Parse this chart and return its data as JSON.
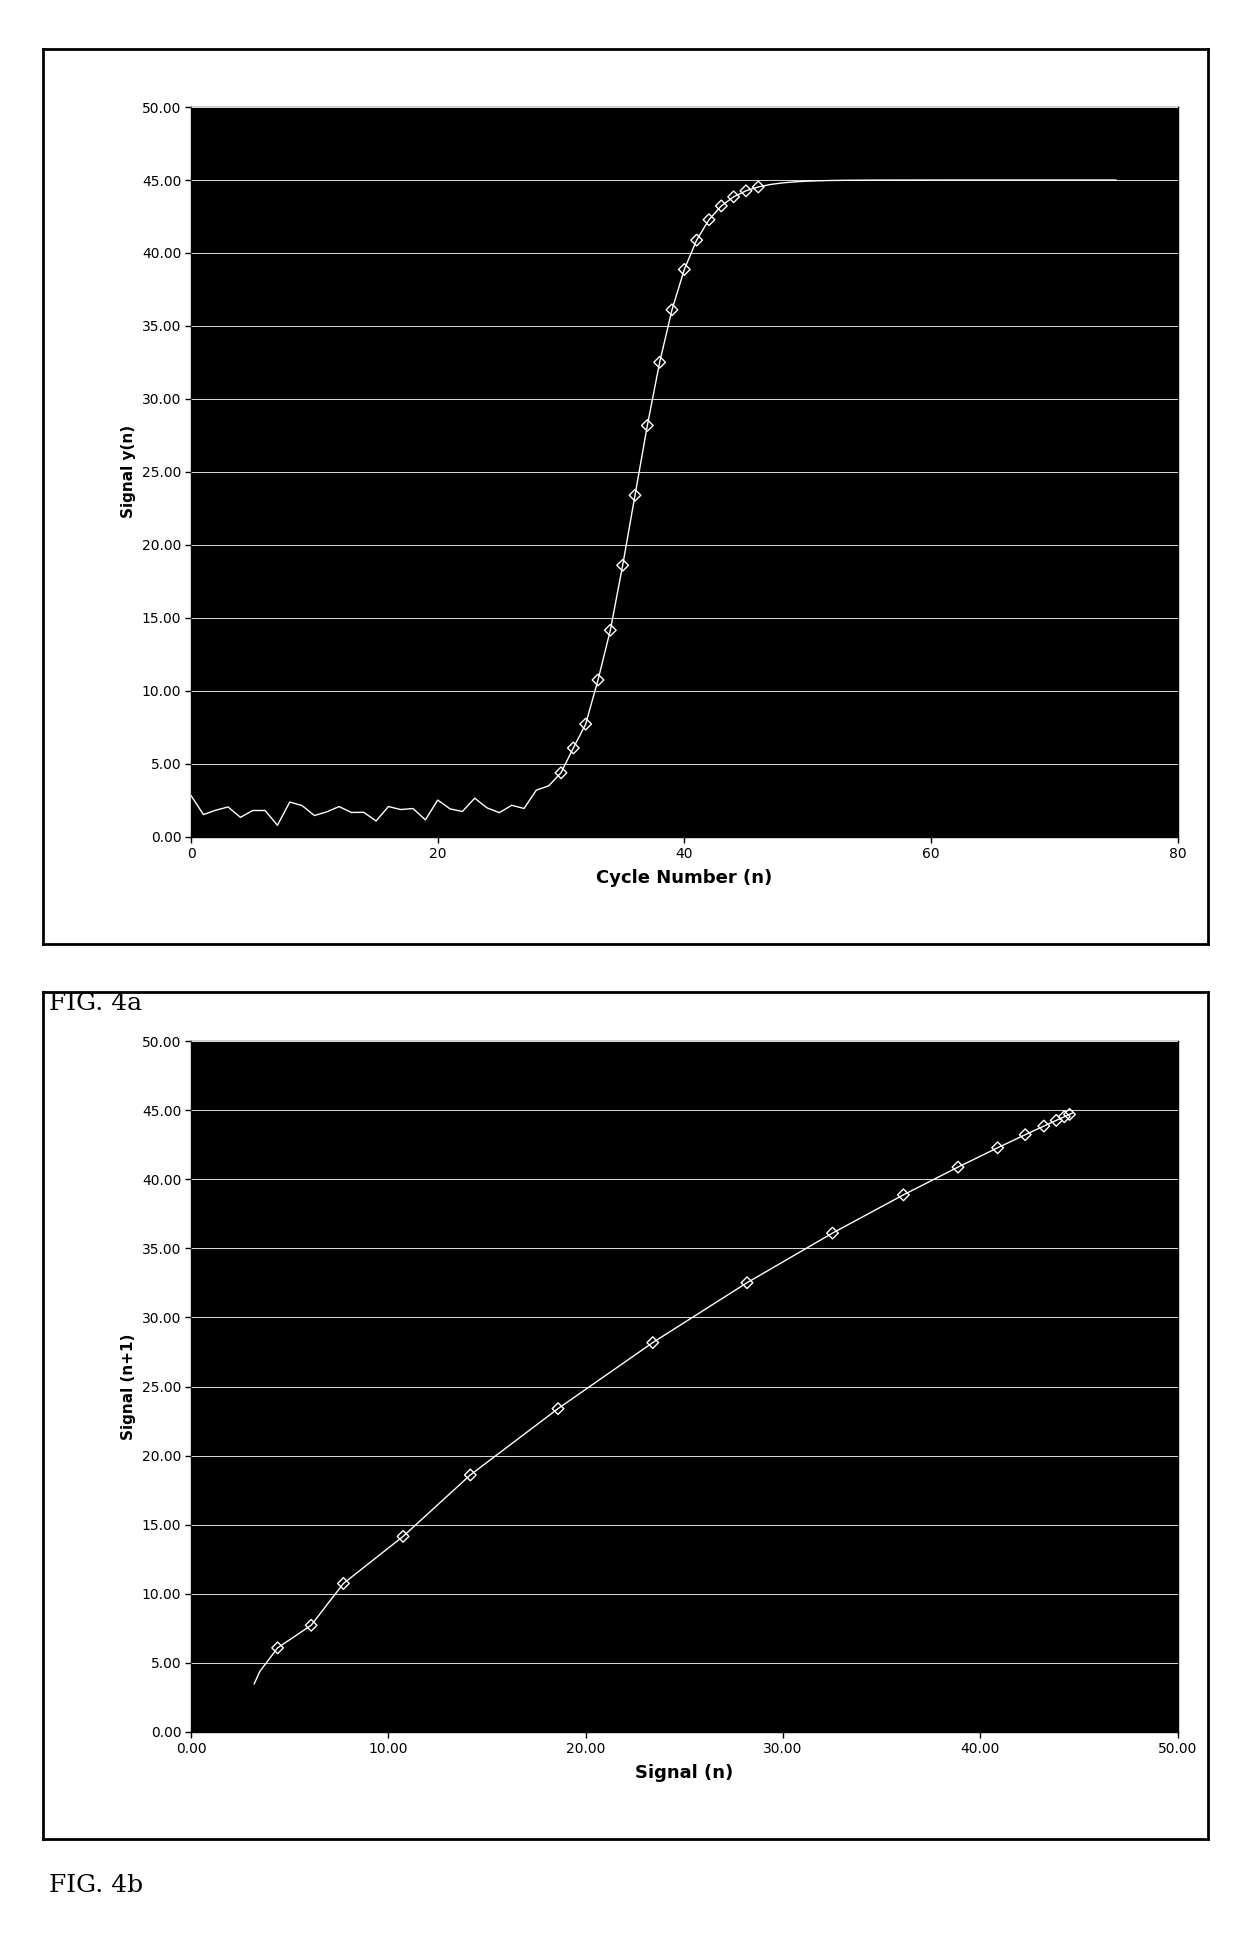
{
  "fig4a": {
    "xlabel": "Cycle Number (n)",
    "ylabel": "Signal y(n)",
    "xlim": [
      0,
      80
    ],
    "ylim": [
      0,
      50
    ],
    "xticks": [
      0,
      20,
      40,
      60,
      80
    ],
    "yticks": [
      0.0,
      5.0,
      10.0,
      15.0,
      20.0,
      25.0,
      30.0,
      35.0,
      40.0,
      45.0,
      50.0
    ],
    "bg_color": "#000000",
    "grid_color": "#ffffff",
    "line_color": "#ffffff",
    "marker_color": "#ffffff",
    "label": "FIG. 4a"
  },
  "fig4b": {
    "xlabel": "Signal (n)",
    "ylabel": "Signal (n+1)",
    "xlim": [
      0.0,
      50.0
    ],
    "ylim": [
      0.0,
      50.0
    ],
    "xticks": [
      0.0,
      10.0,
      20.0,
      30.0,
      40.0,
      50.0
    ],
    "yticks": [
      0.0,
      5.0,
      10.0,
      15.0,
      20.0,
      25.0,
      30.0,
      35.0,
      40.0,
      45.0,
      50.0
    ],
    "bg_color": "#000000",
    "grid_color": "#ffffff",
    "line_color": "#ffffff",
    "marker_color": "#ffffff",
    "label": "FIG. 4b"
  },
  "baseline": 1.8,
  "noise_amplitude": 0.6,
  "midpoint_cycle": 36,
  "growth_rate": 0.45,
  "max_signal": 45.0,
  "total_cycles": 75,
  "xlabel_fontsize": 13,
  "ylabel_fontsize": 11,
  "tick_fontsize": 10,
  "label_fontsize": 18
}
